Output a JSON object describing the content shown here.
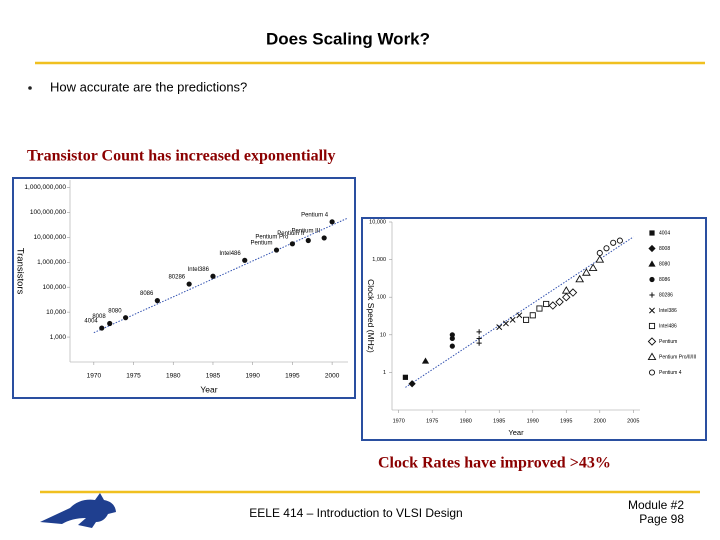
{
  "slide": {
    "title": "Does Scaling Work?",
    "bullet": "How accurate are the predictions?",
    "caption_left": "Transistor Count has increased exponentially",
    "caption_right": "Clock Rates have improved >43%",
    "footer_course": "EELE 414 – Introduction to VLSI Design",
    "footer_module": "Module #2",
    "footer_page": "Page 98"
  },
  "chart_data": [
    {
      "type": "scatter",
      "ylabel": "Transistors",
      "xlabel": "Year",
      "log_y": true,
      "color": "#111111",
      "x": [
        1971,
        1972,
        1974,
        1978,
        1982,
        1985,
        1989,
        1993,
        1995,
        1997,
        1999,
        2000
      ],
      "values": [
        2300,
        3500,
        6000,
        29000,
        134000,
        275000,
        1200000,
        3100000,
        5500000,
        7500000,
        9500000,
        42000000
      ],
      "point_labels": [
        "4004",
        "8008",
        "8080",
        "8086",
        "80286",
        "Intel386",
        "Intel486",
        "Pentium",
        "Pentium Pro",
        "Pentium II",
        "Pentium III",
        "Pentium 4"
      ],
      "trend": {
        "x": [
          1970,
          2002
        ],
        "values": [
          1500,
          60000000
        ]
      },
      "xlim": [
        1967,
        2002
      ],
      "xticks": [
        1970,
        1975,
        1980,
        1985,
        1990,
        1995,
        2000
      ],
      "ylim": [
        100,
        2000000000
      ],
      "yticks": [
        {
          "value": 1000,
          "label": "1,000"
        },
        {
          "value": 10000,
          "label": "10,000"
        },
        {
          "value": 100000,
          "label": "100,000"
        },
        {
          "value": 1000000,
          "label": "1,000,000"
        },
        {
          "value": 10000000,
          "label": "10,000,000"
        },
        {
          "value": 100000000,
          "label": "100,000,000"
        },
        {
          "value": 1000000000,
          "label": "1,000,000,000"
        }
      ]
    },
    {
      "type": "scatter",
      "ylabel": "Clock Speed (MHz)",
      "xlabel": "Year",
      "log_y": true,
      "trend": {
        "x": [
          1971,
          2005
        ],
        "values": [
          0.4,
          4000
        ]
      },
      "series": [
        {
          "name": "4004",
          "color": "#111111",
          "marker": "square",
          "x": [
            1971
          ],
          "values": [
            0.74
          ]
        },
        {
          "name": "8008",
          "color": "#111111",
          "marker": "diamond",
          "x": [
            1972
          ],
          "values": [
            0.5
          ]
        },
        {
          "name": "8080",
          "color": "#111111",
          "marker": "triangle",
          "x": [
            1974
          ],
          "values": [
            2
          ]
        },
        {
          "name": "8086",
          "color": "#111111",
          "marker": "circle",
          "x": [
            1978,
            1978,
            1978
          ],
          "values": [
            5,
            8,
            10
          ]
        },
        {
          "name": "80286",
          "color": "#111111",
          "marker": "plus",
          "x": [
            1982,
            1982,
            1982
          ],
          "values": [
            6,
            8,
            12
          ]
        },
        {
          "name": "Intel386",
          "color": "#111111",
          "marker": "x",
          "x": [
            1985,
            1986,
            1987,
            1988
          ],
          "values": [
            16,
            20,
            25,
            33
          ]
        },
        {
          "name": "Intel486",
          "color": "#111111",
          "marker": "open-square",
          "x": [
            1989,
            1990,
            1991,
            1992
          ],
          "values": [
            25,
            33,
            50,
            66
          ]
        },
        {
          "name": "Pentium",
          "color": "#111111",
          "marker": "open-diamond",
          "x": [
            1993,
            1994,
            1995,
            1996
          ],
          "values": [
            60,
            75,
            100,
            133
          ]
        },
        {
          "name": "Pentium Pro/II/III",
          "color": "#111111",
          "marker": "open-triangle",
          "x": [
            1995,
            1997,
            1998,
            1999,
            2000
          ],
          "values": [
            150,
            300,
            450,
            600,
            1000
          ]
        },
        {
          "name": "Pentium 4",
          "color": "#111111",
          "marker": "open-circle",
          "x": [
            2000,
            2001,
            2002,
            2003
          ],
          "values": [
            1500,
            2000,
            2800,
            3200
          ]
        }
      ],
      "xlim": [
        1969,
        2006
      ],
      "xticks": [
        1970,
        1975,
        1980,
        1985,
        1990,
        1995,
        2000,
        2005
      ],
      "ylim": [
        0.1,
        10000
      ],
      "yticks": [
        1,
        10,
        100,
        {
          "value": 1000,
          "label": "1,000"
        },
        {
          "value": 10000,
          "label": "10,000"
        }
      ]
    }
  ]
}
